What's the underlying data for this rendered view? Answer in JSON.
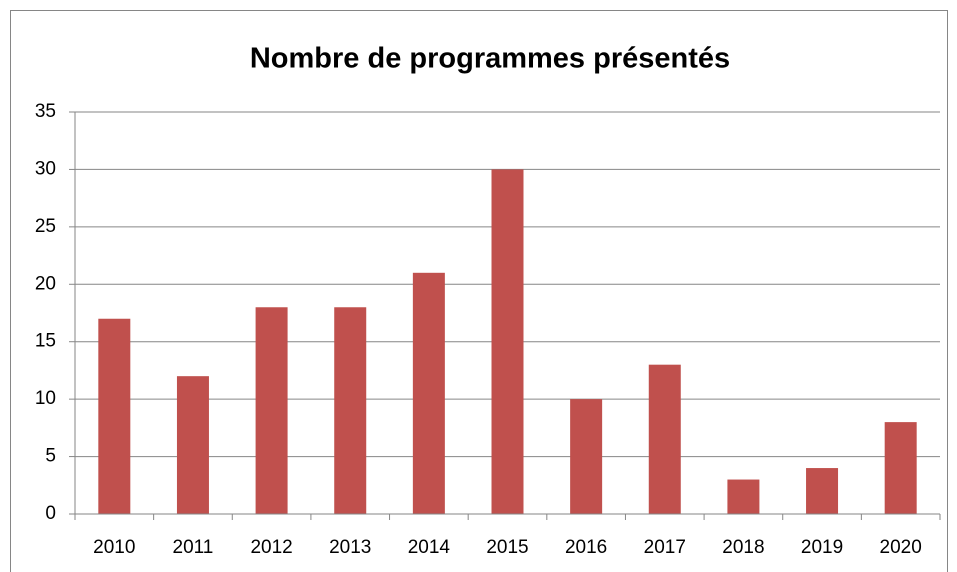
{
  "chart_data": {
    "type": "bar",
    "title": "Nombre de programmes présentés",
    "categories": [
      "2010",
      "2011",
      "2012",
      "2013",
      "2014",
      "2015",
      "2016",
      "2017",
      "2018",
      "2019",
      "2020"
    ],
    "values": [
      17,
      12,
      18,
      18,
      21,
      30,
      10,
      13,
      3,
      4,
      8
    ],
    "color": "#c0504d",
    "ylim": [
      0,
      35
    ],
    "yticks": [
      0,
      5,
      10,
      15,
      20,
      25,
      30,
      35
    ],
    "grid": true
  }
}
